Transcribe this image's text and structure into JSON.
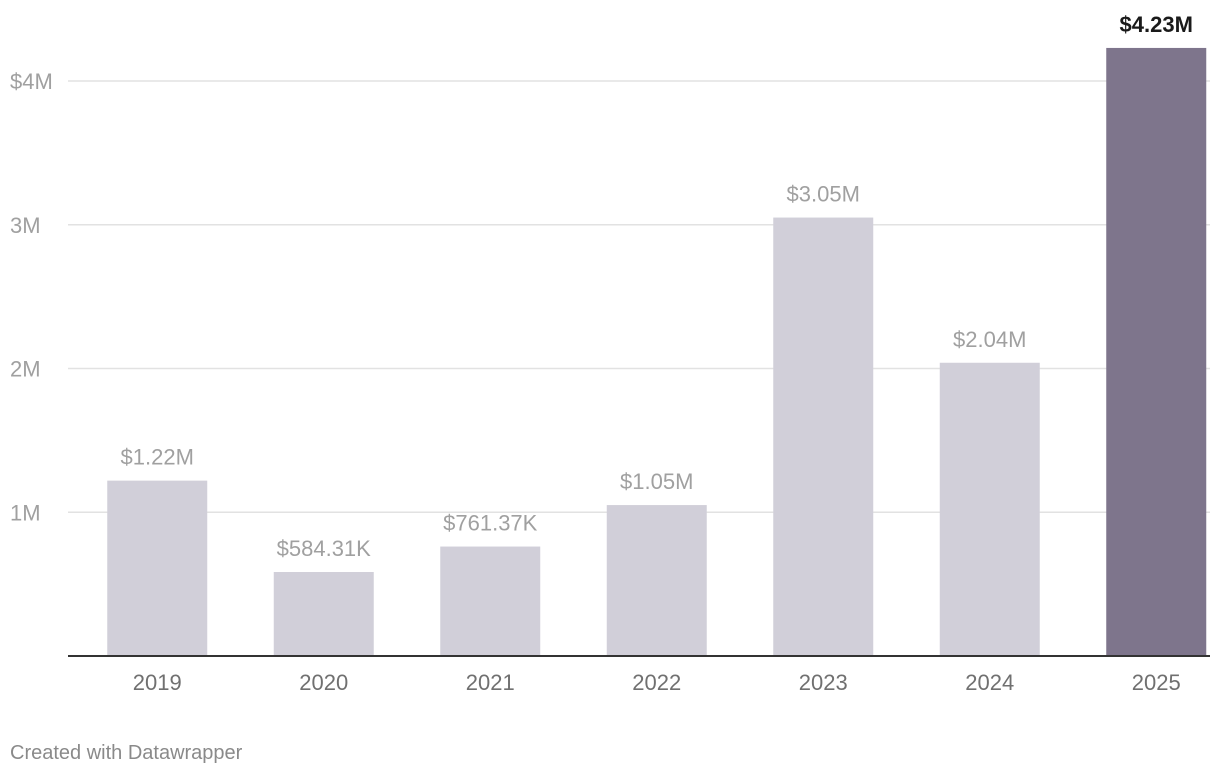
{
  "colors": {
    "bar": "#d1cfd9",
    "bar_highlight": "#7e758c"
  },
  "chart_data": {
    "type": "bar",
    "title": "",
    "xlabel": "",
    "ylabel": "",
    "ylim": [
      0,
      4.4
    ],
    "categories": [
      "2019",
      "2020",
      "2021",
      "2022",
      "2023",
      "2024",
      "2025"
    ],
    "values": [
      1.22,
      0.58431,
      0.76137,
      1.05,
      3.05,
      2.04,
      4.23
    ],
    "labels": [
      "$1.22M",
      "$584.31K",
      "$761.37K",
      "$1.05M",
      "$3.05M",
      "$2.04M",
      "$4.23M"
    ],
    "highlight_index": 6,
    "yticks": [
      {
        "value": 1,
        "label": "1M"
      },
      {
        "value": 2,
        "label": "2M"
      },
      {
        "value": 3,
        "label": "3M"
      },
      {
        "value": 4,
        "label": "$4M"
      }
    ],
    "grid": true
  },
  "footer": {
    "credit": "Created with Datawrapper"
  }
}
